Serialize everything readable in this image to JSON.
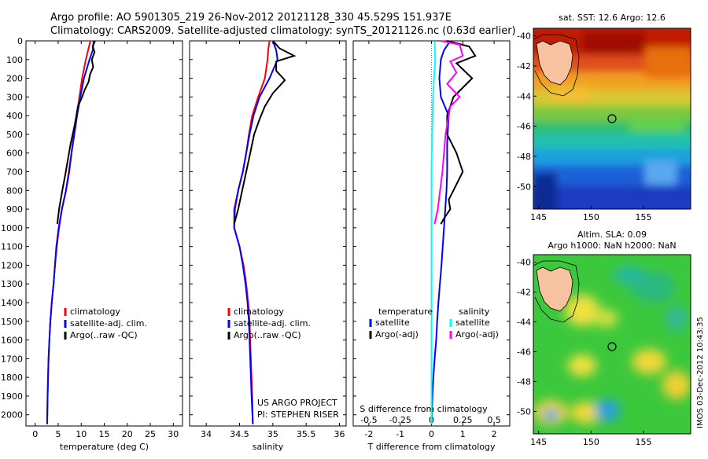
{
  "header": {
    "line1": "Argo profile: AO 5901305_219 26-Nov-2012 20121128_330 45.529S 151.937E",
    "line2": "Climatology: CARS2009. Satellite-adjusted climatology: synTS_20121126.nc (0.63d earlier)"
  },
  "side_stamp": "IMOS 03-Dec-2012 10:43:35",
  "chart_data": [
    {
      "type": "line",
      "id": "temperature",
      "xlabel": "temperature (deg C)",
      "ylabel": "",
      "xlim": [
        -2,
        32
      ],
      "ylim": [
        2060,
        0
      ],
      "xticks": [
        0,
        5,
        10,
        15,
        20,
        25,
        30
      ],
      "yticks": [
        0,
        100,
        200,
        300,
        400,
        500,
        600,
        700,
        800,
        900,
        1000,
        1100,
        1200,
        1300,
        1400,
        1500,
        1600,
        1700,
        1800,
        1900,
        2000
      ],
      "legend": [
        "climatology",
        "satellite-adj. clim.",
        "Argo(..raw -QC)"
      ],
      "series": [
        {
          "name": "climatology",
          "color": "#ff0000",
          "x": [
            12.0,
            11.5,
            11.0,
            10.2,
            9.6,
            9.0,
            8.4,
            7.9,
            7.3,
            6.7,
            5.8,
            5.2,
            4.7,
            4.3,
            4.0,
            3.6,
            3.3,
            3.1,
            2.9,
            2.8,
            2.7,
            2.6
          ],
          "y": [
            0,
            50,
            100,
            200,
            300,
            400,
            500,
            600,
            700,
            800,
            900,
            1000,
            1100,
            1200,
            1300,
            1400,
            1500,
            1600,
            1700,
            1800,
            1900,
            2050
          ]
        },
        {
          "name": "satellite-adj. clim.",
          "color": "#0000ff",
          "x": [
            12.7,
            12.5,
            11.8,
            10.6,
            9.8,
            9.1,
            8.5,
            7.9,
            7.4,
            6.7,
            5.8,
            5.1,
            4.6,
            4.3,
            4.0,
            3.6,
            3.3,
            3.1,
            2.9,
            2.8,
            2.7,
            2.6
          ],
          "y": [
            0,
            50,
            100,
            200,
            300,
            400,
            500,
            600,
            700,
            800,
            900,
            1000,
            1100,
            1200,
            1300,
            1400,
            1500,
            1600,
            1700,
            1800,
            1900,
            2050
          ]
        },
        {
          "name": "Argo(..raw -QC)",
          "color": "#000000",
          "x": [
            13.0,
            12.5,
            12.9,
            12.3,
            12.6,
            11.9,
            11.6,
            10.8,
            10.2,
            9.3,
            8.6,
            7.7,
            7.0,
            6.5,
            5.9,
            5.2,
            4.8
          ],
          "y": [
            0,
            30,
            60,
            100,
            140,
            180,
            220,
            260,
            300,
            350,
            450,
            550,
            650,
            720,
            800,
            900,
            980
          ]
        }
      ]
    },
    {
      "type": "line",
      "id": "salinity",
      "xlabel": "salinity",
      "ylabel": "",
      "xlim": [
        33.75,
        36.1
      ],
      "ylim": [
        2060,
        0
      ],
      "xticks": [
        34,
        34.5,
        35,
        35.5,
        36
      ],
      "xticklabels": [
        "34",
        "34.5",
        "35",
        "35.5",
        "36"
      ],
      "legend": [
        "climatology",
        "satellite-adj. clim.",
        "Argo(..raw -QC)"
      ],
      "annotation": [
        "US ARGO PROJECT",
        "PI: STEPHEN RISER"
      ],
      "series": [
        {
          "name": "climatology",
          "color": "#ff0000",
          "x": [
            34.95,
            34.93,
            34.92,
            34.88,
            34.78,
            34.69,
            34.64,
            34.6,
            34.55,
            34.48,
            34.42,
            34.42,
            34.5,
            34.56,
            34.6,
            34.63,
            34.65,
            34.67,
            34.69,
            34.7
          ],
          "y": [
            0,
            50,
            100,
            200,
            300,
            400,
            500,
            600,
            700,
            800,
            900,
            1000,
            1100,
            1200,
            1300,
            1400,
            1500,
            1700,
            1900,
            2050
          ]
        },
        {
          "name": "satellite-adj. clim.",
          "color": "#0000ff",
          "x": [
            35.0,
            35.05,
            35.07,
            34.95,
            34.8,
            34.71,
            34.65,
            34.6,
            34.55,
            34.48,
            34.43,
            34.42,
            34.5,
            34.55,
            34.59,
            34.62,
            34.64,
            34.66,
            34.68,
            34.7
          ],
          "y": [
            0,
            50,
            100,
            200,
            300,
            400,
            500,
            600,
            700,
            800,
            900,
            1000,
            1100,
            1200,
            1300,
            1400,
            1500,
            1700,
            1900,
            2050
          ]
        },
        {
          "name": "Argo(..raw -QC)",
          "color": "#000000",
          "x": [
            35.0,
            35.1,
            35.32,
            35.05,
            35.05,
            35.18,
            35.0,
            34.88,
            34.8,
            34.72,
            34.66,
            34.6,
            34.54,
            34.48,
            34.42
          ],
          "y": [
            0,
            40,
            80,
            110,
            160,
            210,
            280,
            350,
            420,
            500,
            600,
            700,
            800,
            900,
            980
          ]
        }
      ]
    },
    {
      "type": "line",
      "id": "difference",
      "xlabel": "T difference from climatology",
      "x2label": "S difference from climatology",
      "ylabel": "",
      "xlim": [
        -2.5,
        2.5
      ],
      "ylim": [
        2060,
        0
      ],
      "xticks": [
        -2,
        -1,
        0,
        1,
        2
      ],
      "xticklabels": [
        "-2",
        "-1",
        "0",
        "1",
        "2"
      ],
      "x2ticks": [
        -0.5,
        -0.25,
        0,
        0.25,
        0.5
      ],
      "x2ticklabels": [
        "-0.5",
        "-0.25",
        "0",
        "0.25",
        "0.5"
      ],
      "legend_title_left": "temperature",
      "legend_title_right": "salinity",
      "legend": [
        "satellite",
        "Argo(-adj)",
        "satellite",
        "Argo(-adj)"
      ],
      "series": [
        {
          "name": "satellite",
          "color": "#0000ff",
          "x": [
            0.6,
            0.4,
            0.3,
            0.25,
            0.3,
            0.55,
            0.5,
            0.5,
            0.48,
            0.44,
            0.4,
            0.36,
            0.32,
            0.27,
            0.22,
            0.18,
            0.15,
            0.1,
            0.06,
            0.03,
            0.0
          ],
          "y": [
            0,
            50,
            100,
            200,
            300,
            400,
            550,
            700,
            800,
            900,
            1000,
            1100,
            1200,
            1300,
            1400,
            1500,
            1600,
            1700,
            1800,
            1900,
            2050
          ]
        },
        {
          "name": "Argo(-adj)",
          "color": "#000000",
          "x": [
            0.5,
            1.2,
            1.4,
            0.8,
            1.3,
            0.7,
            0.5,
            0.5,
            0.8,
            1.0,
            0.7,
            0.55,
            0.6,
            0.4,
            0.3
          ],
          "y": [
            0,
            30,
            80,
            120,
            200,
            300,
            400,
            500,
            600,
            700,
            800,
            850,
            900,
            950,
            980
          ]
        },
        {
          "name": "satellite",
          "color": "#00ffff",
          "x": [
            0.1,
            0.12,
            0.08,
            0.05,
            0.02,
            0.0,
            0.0,
            0.0,
            0.0,
            0.0,
            0.0,
            0.0,
            0.0
          ],
          "y": [
            0,
            100,
            200,
            300,
            500,
            700,
            900,
            1100,
            1300,
            1500,
            1700,
            1900,
            2050
          ]
        },
        {
          "name": "Argo(-adj)",
          "color": "#ff00ff",
          "x": [
            0.3,
            0.9,
            1.0,
            0.6,
            0.8,
            0.5,
            0.9,
            0.6,
            0.45,
            0.35,
            0.2,
            0.1
          ],
          "y": [
            0,
            20,
            80,
            110,
            170,
            230,
            300,
            350,
            500,
            700,
            900,
            980
          ]
        }
      ]
    },
    {
      "type": "heatmap",
      "id": "sst-map",
      "title": "sat. SST: 12.6  Argo: 12.6",
      "xticks": [
        145,
        150,
        155
      ],
      "yticks": [
        -40,
        -42,
        -44,
        -46,
        -48,
        -50
      ],
      "xlim": [
        144.5,
        159.5
      ],
      "ylim": [
        -51.5,
        -39.5
      ],
      "argo_position": [
        151.937,
        -45.529
      ]
    },
    {
      "type": "heatmap",
      "id": "sla-map",
      "title": "Altim. SLA: 0.09",
      "subtitle": "Argo h1000: NaN h2000: NaN",
      "xticks": [
        145,
        150,
        155
      ],
      "yticks": [
        -40,
        -42,
        -44,
        -46,
        -48,
        -50
      ],
      "xlim": [
        144.5,
        159.5
      ],
      "ylim": [
        -51.5,
        -39.5
      ],
      "argo_position": [
        151.937,
        -45.529
      ]
    }
  ]
}
